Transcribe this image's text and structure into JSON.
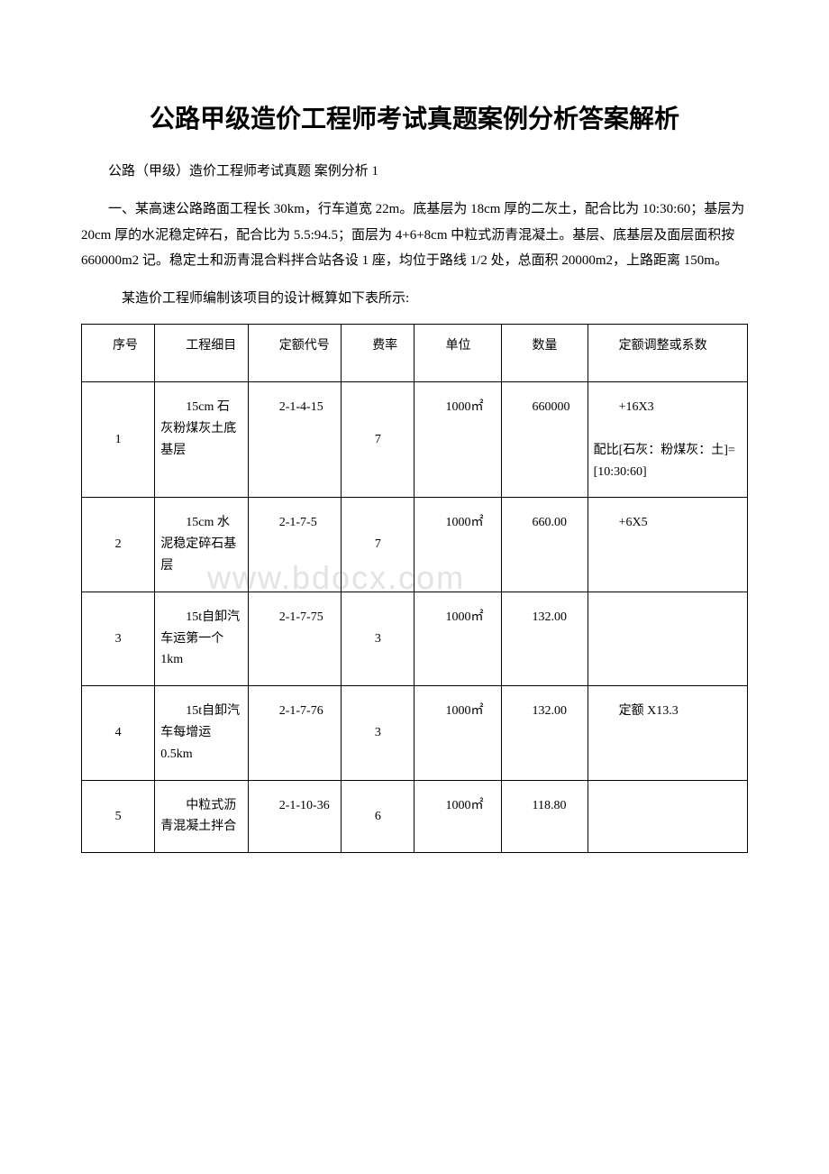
{
  "title": "公路甲级造价工程师考试真题案例分析答案解析",
  "subtitle": "公路（甲级）造价工程师考试真题 案例分析 1",
  "paragraph": "一、某高速公路路面工程长 30km，行车道宽 22m。底基层为 18cm 厚的二灰土，配合比为 10:30:60；基层为 20cm 厚的水泥稳定碎石，配合比为 5.5:94.5；面层为 4+6+8cm 中粒式沥青混凝土。基层、底基层及面层面积按 660000m2 记。稳定土和沥青混合料拌合站各设 1 座，均位于路线 1/2 处，总面积 20000m2，上路距离 150m。",
  "tableIntro": "某造价工程师编制该项目的设计概算如下表所示:",
  "watermark": "www.bdocx.com",
  "table": {
    "columns": [
      {
        "label": "序号",
        "width": "11%"
      },
      {
        "label": "工程细目",
        "width": "14%"
      },
      {
        "label": "定额代号",
        "width": "14%"
      },
      {
        "label": "费率",
        "width": "11%"
      },
      {
        "label": "单位",
        "width": "13%"
      },
      {
        "label": "数量",
        "width": "13%"
      },
      {
        "label": "定额调整或系数",
        "width": "24%"
      }
    ],
    "rows": [
      {
        "seq": "1",
        "item": "15cm 石灰粉煤灰土底基层",
        "code": "2-1-4-15",
        "rate": "7",
        "unit": "1000㎡",
        "qty": "660000",
        "adj": "+16X3\n\n配比[石灰：粉煤灰：土]=[10:30:60]"
      },
      {
        "seq": "2",
        "item": "15cm 水泥稳定碎石基层",
        "code": "2-1-7-5",
        "rate": "7",
        "unit": "1000㎡",
        "qty": "660.00",
        "adj": "+6X5"
      },
      {
        "seq": "3",
        "item": "15t自卸汽车运第一个1km",
        "code": "2-1-7-75",
        "rate": "3",
        "unit": "1000㎡",
        "qty": "132.00",
        "adj": ""
      },
      {
        "seq": "4",
        "item": "15t自卸汽车每增运 0.5km",
        "code": "2-1-7-76",
        "rate": "3",
        "unit": "1000㎡",
        "qty": "132.00",
        "adj": "定额 X13.3"
      },
      {
        "seq": "5",
        "item": "中粒式沥青混凝土拌合",
        "code": "2-1-10-36",
        "rate": "6",
        "unit": "1000㎡",
        "qty": "118.80",
        "adj": ""
      }
    ],
    "colors": {
      "border": "#000000",
      "text": "#000000",
      "background": "#ffffff",
      "watermark": "#e3e3e3"
    }
  }
}
